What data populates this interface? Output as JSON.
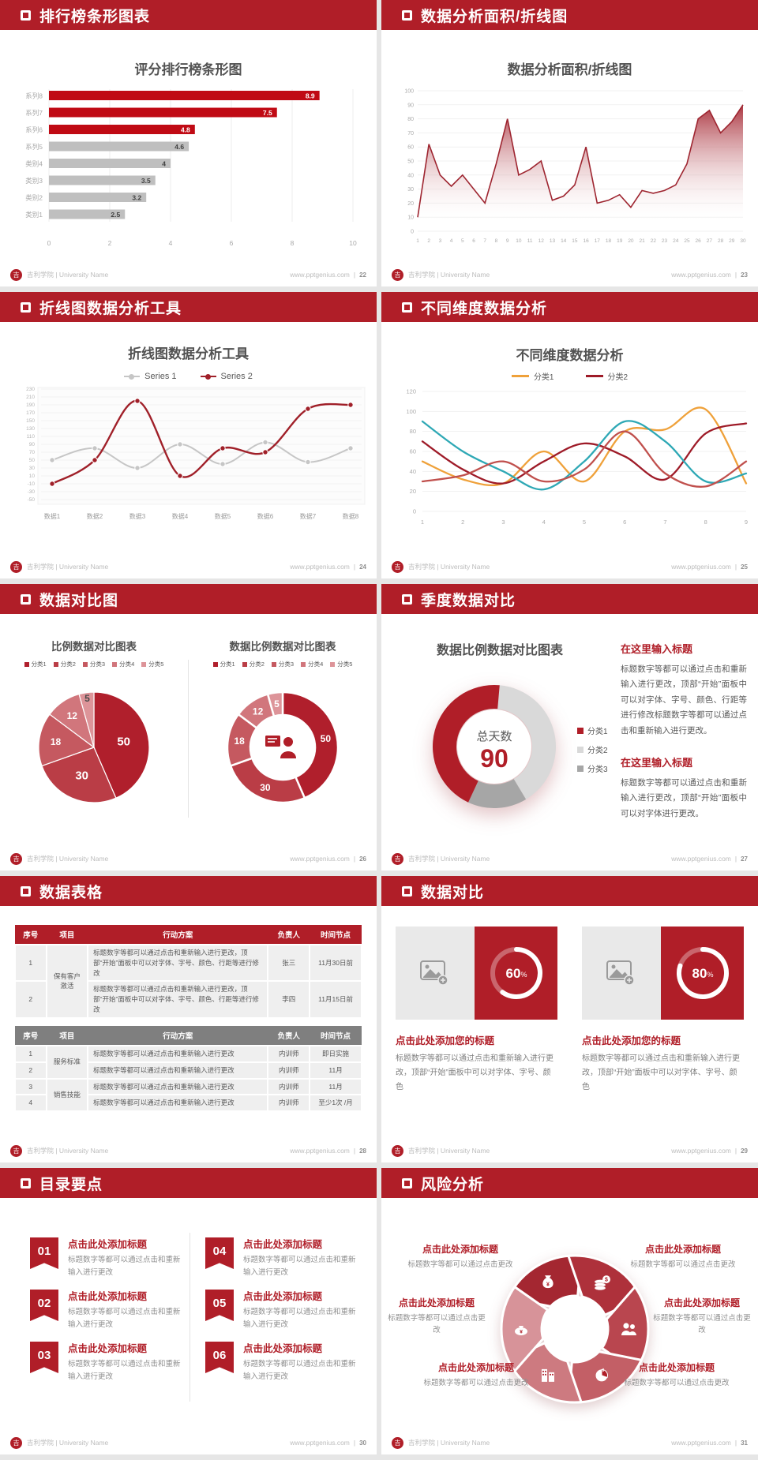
{
  "footer": {
    "brand": "吉利学院 | University Name",
    "site": "www.pptgenius.com",
    "logo_glyph": "吉"
  },
  "accent": "#b01e28",
  "slides": [
    {
      "header": "排行榜条形图表",
      "page": "22"
    },
    {
      "header": "数据分析面积/折线图",
      "page": "23"
    },
    {
      "header": "折线图数据分析工具",
      "page": "24"
    },
    {
      "header": "不同维度数据分析",
      "page": "25"
    },
    {
      "header": "数据对比图",
      "page": "26"
    },
    {
      "header": "季度数据对比",
      "page": "27",
      "blocks": [
        {
          "title": "在这里输入标题",
          "body": "标题数字等都可以通过点击和重新输入进行更改，顶部“开始”面板中可以对字体、字号、颜色、行距等进行修改标题数字等都可以通过点击和重新输入进行更改。"
        },
        {
          "title": "在这里输入标题",
          "body": "标题数字等都可以通过点击和重新输入进行更改，顶部“开始”面板中可以对字体进行更改。"
        }
      ]
    },
    {
      "header": "数据表格",
      "page": "28"
    },
    {
      "header": "数据对比",
      "page": "29",
      "cards": [
        {
          "percent": 60,
          "percent_label": "60",
          "title": "点击此处添加您的标题",
          "body": "标题数字等都可以通过点击和重新输入进行更改，顶部“开始”面板中可以对字体、字号、颜色"
        },
        {
          "percent": 80,
          "percent_label": "80",
          "title": "点击此处添加您的标题",
          "body": "标题数字等都可以通过点击和重新输入进行更改，顶部“开始”面板中可以对字体、字号、颜色"
        }
      ]
    },
    {
      "header": "目录要点",
      "page": "30",
      "items": [
        {
          "num": "01",
          "title": "点击此处添加标题",
          "body": "标题数字等都可以通过点击和重新输入进行更改"
        },
        {
          "num": "02",
          "title": "点击此处添加标题",
          "body": "标题数字等都可以通过点击和重新输入进行更改"
        },
        {
          "num": "03",
          "title": "点击此处添加标题",
          "body": "标题数字等都可以通过点击和重新输入进行更改"
        },
        {
          "num": "04",
          "title": "点击此处添加标题",
          "body": "标题数字等都可以通过点击和重新输入进行更改"
        },
        {
          "num": "05",
          "title": "点击此处添加标题",
          "body": "标题数字等都可以通过点击和重新输入进行更改"
        },
        {
          "num": "06",
          "title": "点击此处添加标题",
          "body": "标题数字等都可以通过点击和重新输入进行更改"
        }
      ]
    },
    {
      "header": "风险分析",
      "page": "31",
      "spokes": [
        {
          "pos": "tl",
          "icon": "money-bag",
          "angle": 330,
          "title": "点击此处添加标题",
          "body": "标题数字等都可以通过点击更改"
        },
        {
          "pos": "tr",
          "icon": "coins",
          "angle": 30,
          "title": "点击此处添加标题",
          "body": "标题数字等都可以通过点击更改"
        },
        {
          "pos": "ml",
          "icon": "money-pouch",
          "angle": 270,
          "title": "点击此处添加标题",
          "body": "标题数字等都可以通过点击更改"
        },
        {
          "pos": "mr",
          "icon": "people",
          "angle": 90,
          "title": "点击此处添加标题",
          "body": "标题数字等都可以通过点击更改"
        },
        {
          "pos": "bl",
          "icon": "building",
          "angle": 210,
          "title": "点击此处添加标题",
          "body": "标题数字等都可以通过点击更改"
        },
        {
          "pos": "br",
          "icon": "pie-chart",
          "angle": 150,
          "title": "点击此处添加标题",
          "body": "标题数字等都可以通过点击更改"
        }
      ],
      "wheel_colors": [
        "#a42731",
        "#ae313b",
        "#b9464f",
        "#c35f66",
        "#cd7a80",
        "#d79399"
      ]
    }
  ],
  "chart_data": [
    {
      "slide": 0,
      "type": "bar",
      "orientation": "horizontal",
      "title": "评分排行榜条形图",
      "categories": [
        "系列8",
        "系列7",
        "系列6",
        "系列5",
        "类别4",
        "类别3",
        "类别2",
        "类别1"
      ],
      "values": [
        8.9,
        7.5,
        4.8,
        4.6,
        4,
        3.5,
        3.2,
        2.5
      ],
      "bar_colors": [
        "#c00a14",
        "#c00a14",
        "#c00a14",
        "#bfbfbf",
        "#bfbfbf",
        "#bfbfbf",
        "#bfbfbf",
        "#bfbfbf"
      ],
      "value_label_colors": [
        "#ffffff",
        "#ffffff",
        "#ffffff",
        "#404040",
        "#404040",
        "#404040",
        "#404040",
        "#404040"
      ],
      "xlim": [
        0,
        10
      ],
      "xticks": [
        0,
        2,
        4,
        6,
        8,
        10
      ],
      "grid": true
    },
    {
      "slide": 1,
      "type": "area",
      "title": "数据分析面积/折线图",
      "x": [
        1,
        2,
        3,
        4,
        5,
        6,
        7,
        8,
        9,
        10,
        11,
        12,
        13,
        14,
        15,
        16,
        17,
        18,
        19,
        20,
        21,
        22,
        23,
        24,
        25,
        26,
        27,
        28,
        29,
        30
      ],
      "values": [
        10,
        62,
        40,
        32,
        40,
        30,
        20,
        48,
        80,
        40,
        44,
        50,
        22,
        25,
        33,
        60,
        20,
        22,
        26,
        17,
        29,
        27,
        29,
        33,
        48,
        80,
        86,
        70,
        78,
        90
      ],
      "ylim": [
        0,
        100
      ],
      "ytick_step": 10,
      "line_color": "#9e2530",
      "fill_top": "#a72c37",
      "fill_bottom": "#ffffff"
    },
    {
      "slide": 2,
      "type": "line",
      "title": "折线图数据分析工具",
      "categories": [
        "数据1",
        "数据2",
        "数据3",
        "数据4",
        "数据5",
        "数据6",
        "数据7",
        "数据8"
      ],
      "ylim": [
        -50,
        230
      ],
      "ytick_step": 20,
      "smooth": true,
      "markers": true,
      "series": [
        {
          "name": "Series 1",
          "color": "#c6c6c6",
          "values": [
            50,
            80,
            30,
            90,
            40,
            95,
            45,
            80
          ]
        },
        {
          "name": "Series 2",
          "color": "#a02029",
          "values": [
            -10,
            50,
            200,
            10,
            80,
            70,
            180,
            190
          ]
        }
      ]
    },
    {
      "slide": 3,
      "type": "line",
      "title": "不同维度数据分析",
      "x": [
        1,
        2,
        3,
        4,
        5,
        6,
        7,
        8,
        9
      ],
      "ylim": [
        0,
        120
      ],
      "ytick_step": 20,
      "smooth": true,
      "markers": false,
      "series": [
        {
          "name": "分类1",
          "in_legend": true,
          "color": "#efa13a",
          "values": [
            50,
            32,
            28,
            60,
            30,
            80,
            82,
            102,
            28
          ]
        },
        {
          "name": "分类2",
          "in_legend": true,
          "color": "#9e1b28",
          "values": [
            70,
            42,
            28,
            50,
            68,
            55,
            32,
            78,
            88
          ]
        },
        {
          "name": "",
          "in_legend": false,
          "color": "#2ea8b5",
          "values": [
            90,
            60,
            40,
            22,
            50,
            90,
            70,
            30,
            38
          ]
        },
        {
          "name": "",
          "in_legend": false,
          "color": "#c0504d",
          "values": [
            30,
            36,
            50,
            30,
            42,
            80,
            38,
            25,
            50
          ]
        }
      ]
    },
    {
      "slide": 4,
      "type": "pie",
      "title": "比例数据对比图表",
      "labels": [
        "分类1",
        "分类2",
        "分类3",
        "分类4",
        "分类5"
      ],
      "values": [
        50,
        30,
        18,
        12,
        5
      ],
      "colors": [
        "#b01f2c",
        "#ba3d46",
        "#c55960",
        "#d1767c",
        "#dd9499"
      ],
      "label_colors": [
        "#ffffff",
        "#ffffff",
        "#ffffff",
        "#ffffff",
        "#4a4a4a"
      ]
    },
    {
      "slide": 4,
      "type": "donut",
      "title": "数据比例数据对比图表",
      "labels": [
        "分类1",
        "分类2",
        "分类3",
        "分类4",
        "分类5"
      ],
      "values": [
        50,
        30,
        18,
        12,
        5
      ],
      "colors": [
        "#b01f2c",
        "#ba3d46",
        "#c55960",
        "#d1767c",
        "#dd9499"
      ],
      "label_colors": [
        "#ffffff",
        "#ffffff",
        "#ffffff",
        "#ffffff",
        "#ffffff"
      ],
      "center_icon": "presenter-icon"
    },
    {
      "slide": 5,
      "type": "donut",
      "title": "数据比例数据对比图表",
      "labels": [
        "分类1",
        "分类2",
        "分类3"
      ],
      "values": [
        40,
        36,
        14
      ],
      "colors": [
        "#b01e28",
        "#d9d9d9",
        "#a6a6a6"
      ],
      "center": {
        "label": "总天数",
        "value": "90"
      },
      "start_angle": 5,
      "draw_order": [
        1,
        2,
        0
      ],
      "legend_position": "right"
    },
    {
      "slide": 6,
      "type": "table",
      "tables": [
        {
          "header_bg": "#b01e28",
          "columns": [
            "序号",
            "项目",
            "行动方案",
            "负责人",
            "时间节点"
          ],
          "rows": [
            [
              {
                "t": "1"
              },
              {
                "t": "保有客户激活",
                "rs": 2
              },
              {
                "t": "标题数字等都可以通过点击和重新输入进行更改，顶部“开始”面板中可以对字体、字号、颜色、行距等进行修改",
                "al": "l"
              },
              {
                "t": "张三"
              },
              {
                "t": "11月30日前"
              }
            ],
            [
              {
                "t": "2"
              },
              {
                "t": "标题数字等都可以通过点击和重新输入进行更改，顶部“开始”面板中可以对字体、字号、颜色、行距等进行修改",
                "al": "l"
              },
              {
                "t": "李四"
              },
              {
                "t": "11月15日前"
              }
            ]
          ]
        },
        {
          "header_bg": "#7f7f7f",
          "columns": [
            "序号",
            "项目",
            "行动方案",
            "负责人",
            "时间节点"
          ],
          "rows": [
            [
              {
                "t": "1"
              },
              {
                "t": "服务标准",
                "rs": 2
              },
              {
                "t": "标题数字等都可以通过点击和重新输入进行更改",
                "al": "l"
              },
              {
                "t": "内训师"
              },
              {
                "t": "即日实施"
              }
            ],
            [
              {
                "t": "2"
              },
              {
                "t": "标题数字等都可以通过点击和重新输入进行更改",
                "al": "l"
              },
              {
                "t": "内训师"
              },
              {
                "t": "11月"
              }
            ],
            [
              {
                "t": "3"
              },
              {
                "t": "销售技能",
                "rs": 2
              },
              {
                "t": "标题数字等都可以通过点击和重新输入进行更改",
                "al": "l"
              },
              {
                "t": "内训师"
              },
              {
                "t": "11月"
              }
            ],
            [
              {
                "t": "4"
              },
              {
                "t": "标题数字等都可以通过点击和重新输入进行更改",
                "al": "l"
              },
              {
                "t": "内训师"
              },
              {
                "t": "至少1次 /月"
              }
            ]
          ]
        }
      ]
    }
  ]
}
